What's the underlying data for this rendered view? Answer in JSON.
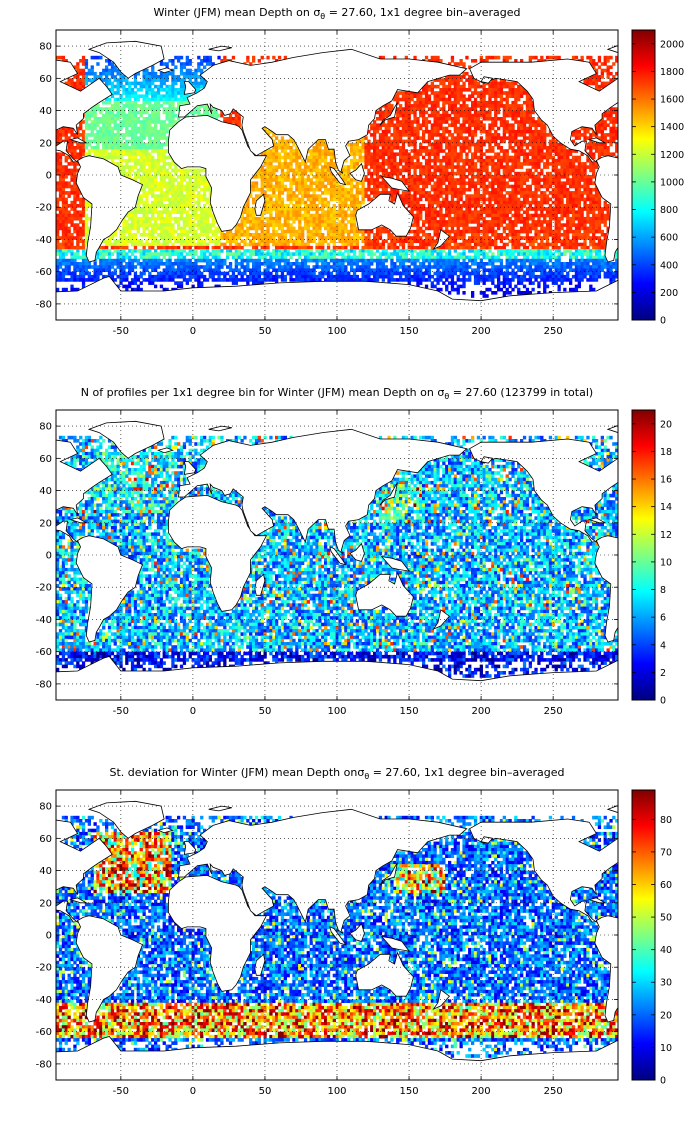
{
  "figure": {
    "panels": [
      {
        "id": "mean-depth",
        "title": {
          "pre": "Winter (JFM) mean Depth on ",
          "sigma": "σ",
          "sub": "θ",
          "post": " = 27.60, 1x1 degree bin–averaged"
        },
        "colorbar_ticks": [
          "0",
          "200",
          "400",
          "600",
          "800",
          "1000",
          "1200",
          "1400",
          "1600",
          "1800",
          "2000"
        ],
        "cbar_max": 2100,
        "pattern": "depth"
      },
      {
        "id": "profile-count",
        "title": {
          "pre": "N of profiles per 1x1 degree bin for Winter (JFM) mean Depth on ",
          "sigma": "σ",
          "sub": "θ",
          "post": " = 27.60 (123799 in total)"
        },
        "colorbar_ticks": [
          "0",
          "2",
          "4",
          "6",
          "8",
          "10",
          "12",
          "14",
          "16",
          "18",
          "20"
        ],
        "cbar_max": 21,
        "pattern": "count"
      },
      {
        "id": "std-deviation",
        "title": {
          "pre": "St. deviation for Winter (JFM) mean Depth on",
          "sigma": "σ",
          "sub": "θ",
          "post": " = 27.60, 1x1 degree bin–averaged"
        },
        "colorbar_ticks": [
          "0",
          "10",
          "20",
          "30",
          "40",
          "50",
          "60",
          "70",
          "80"
        ],
        "cbar_max": 89,
        "pattern": "std"
      }
    ],
    "x_ticks": [
      "-50",
      "0",
      "50",
      "100",
      "150",
      "200",
      "250"
    ],
    "y_ticks": [
      "80",
      "60",
      "40",
      "20",
      "0",
      "-20",
      "-40",
      "-60",
      "-80"
    ],
    "lon_range": [
      -95,
      295
    ],
    "lat_range": [
      -90,
      90
    ],
    "colormap": "jet",
    "grid": "dotted"
  }
}
